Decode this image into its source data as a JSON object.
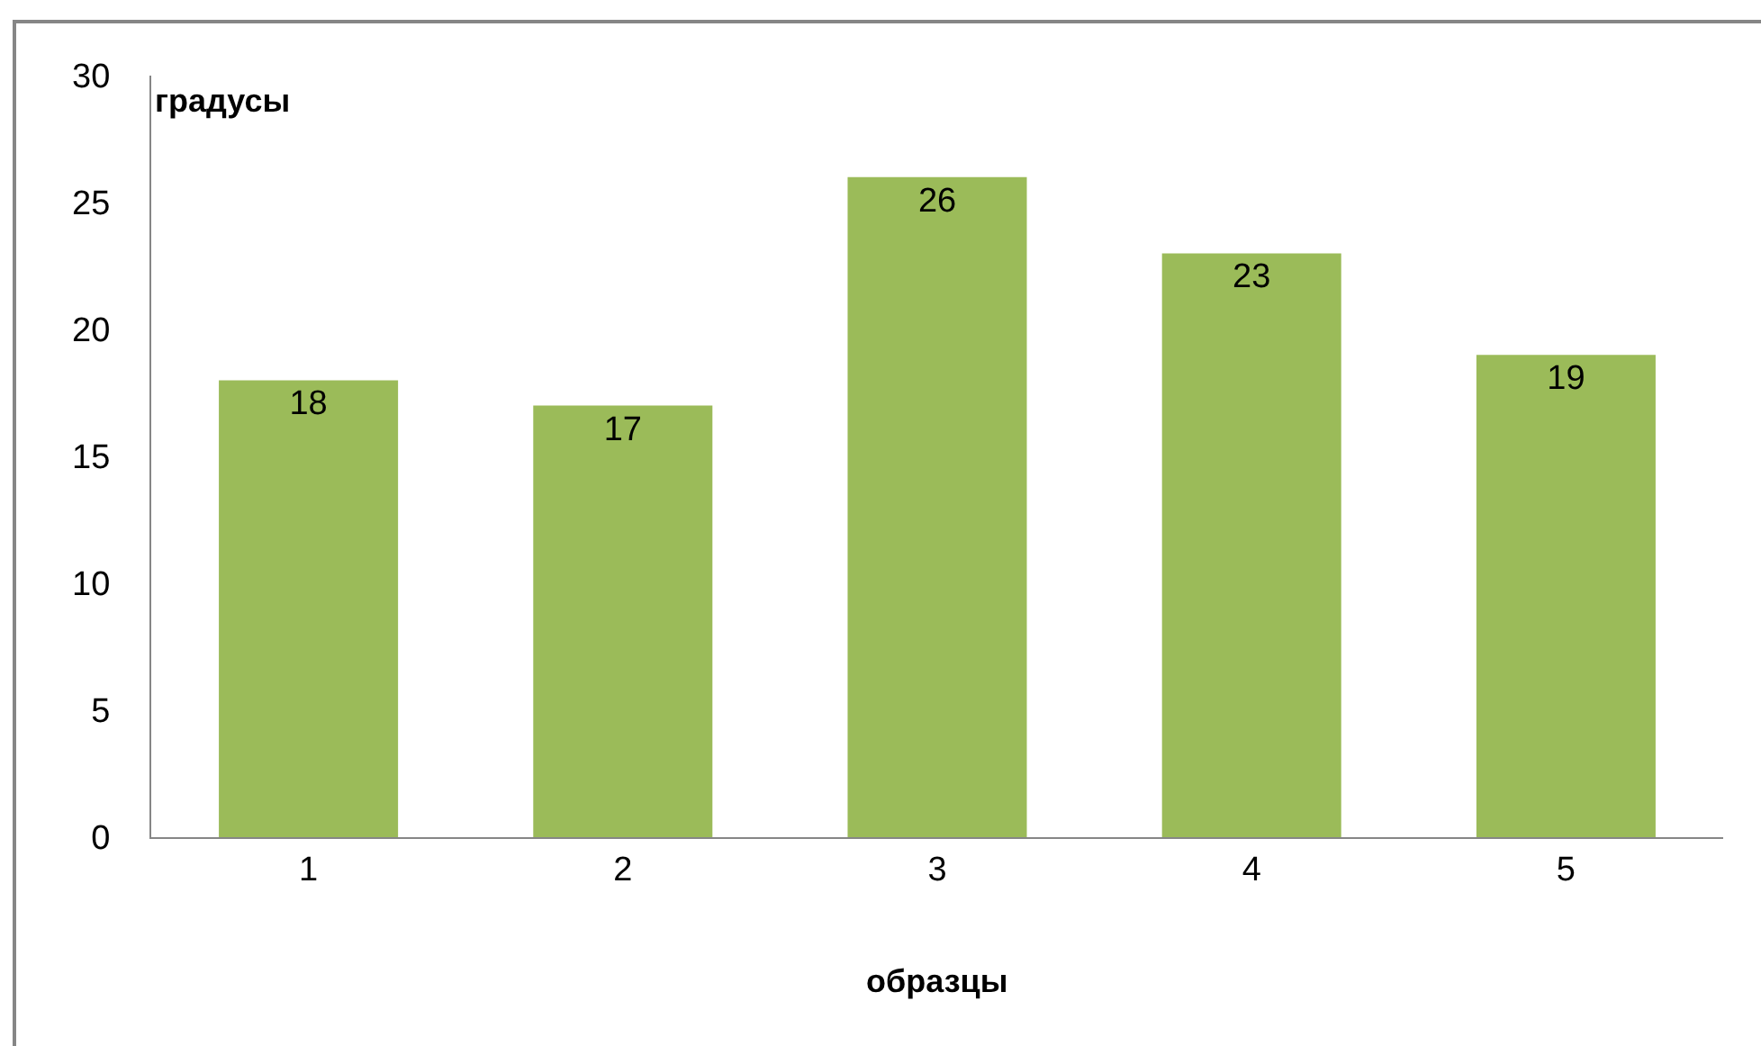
{
  "chart_data": {
    "type": "bar",
    "categories": [
      "1",
      "2",
      "3",
      "4",
      "5"
    ],
    "values": [
      18,
      17,
      26,
      23,
      19
    ],
    "color": "#9bbb59",
    "ylim": [
      0,
      30
    ],
    "yticks": [
      0,
      5,
      10,
      15,
      20,
      25,
      30
    ],
    "xlabel": "образцы",
    "ylabel": "градусы",
    "data_labels": true
  }
}
